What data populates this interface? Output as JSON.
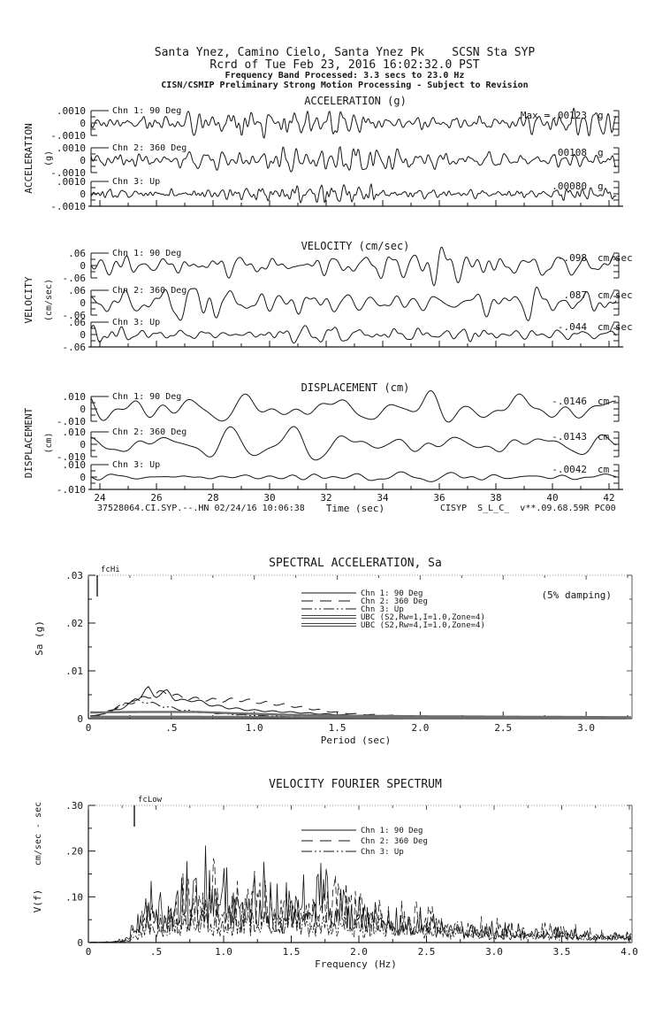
{
  "header": {
    "line1": "Santa Ynez, Camino Cielo, Santa Ynez Pk    SCSN Sta SYP",
    "line2": "Rcrd of Tue Feb 23, 2016 16:02:32.0 PST",
    "line3": "Frequency Band Processed: 3.3 secs to 23.0 Hz",
    "line4": "CISN/CSMIP Preliminary Strong Motion Processing - Subject to Revision"
  },
  "waveform_footer": {
    "left": "37528064.CI.SYP.--.HN 02/24/16 10:06:38",
    "right": "CISYP  S_L_C_  v**.09.68.59R PC00"
  },
  "chart_data": [
    {
      "id": "acceleration",
      "type": "line",
      "title": "ACCELERATION (g)",
      "axis_label": "ACCELERATION",
      "axis_unit": "(g)",
      "ytick_labels": [
        ".0010",
        "0",
        "-.0010"
      ],
      "y_fullscale": 0.001,
      "time_window_sec": [
        23.6,
        42.5
      ],
      "channels": [
        {
          "label": "Chn 1: 90 Deg",
          "max_prefix": "Max =",
          "max_value_label": "-.00123",
          "unit": "g",
          "max_value": -0.00123,
          "seed": 11,
          "freq_band": [
            1.2,
            6.5
          ]
        },
        {
          "label": "Chn 2: 360 Deg",
          "max_value_label": ".00108",
          "unit": "g",
          "max_value": 0.00108,
          "seed": 22,
          "freq_band": [
            1.2,
            6.5
          ]
        },
        {
          "label": "Chn 3: Up",
          "max_value_label": ".00080",
          "unit": "g",
          "max_value": 0.0008,
          "seed": 33,
          "freq_band": [
            1.6,
            7.5
          ]
        }
      ]
    },
    {
      "id": "velocity",
      "type": "line",
      "title": "VELOCITY (cm/sec)",
      "axis_label": "VELOCITY",
      "axis_unit": "(cm/sec)",
      "ytick_labels": [
        ".06",
        "0",
        "-.06"
      ],
      "y_fullscale": 0.06,
      "time_window_sec": [
        23.6,
        42.5
      ],
      "channels": [
        {
          "label": "Chn 1: 90 Deg",
          "max_value_label": "-.098",
          "unit": "cm/sec",
          "max_value": -0.098,
          "seed": 44,
          "freq_band": [
            0.7,
            3.0
          ]
        },
        {
          "label": "Chn 2: 360 Deg",
          "max_value_label": ".087",
          "unit": "cm/sec",
          "max_value": 0.087,
          "seed": 55,
          "freq_band": [
            0.7,
            3.0
          ]
        },
        {
          "label": "Chn 3: Up",
          "max_value_label": "-.044",
          "unit": "cm/sec",
          "max_value": -0.044,
          "seed": 66,
          "freq_band": [
            0.9,
            3.6
          ]
        }
      ]
    },
    {
      "id": "displacement",
      "type": "line",
      "title": "DISPLACEMENT (cm)",
      "axis_label": "DISPLACEMENT",
      "axis_unit": "(cm)",
      "ytick_labels": [
        ".010",
        "0",
        "-.010"
      ],
      "y_fullscale": 0.01,
      "time_window_sec": [
        23.6,
        42.5
      ],
      "xlabel": "Time (sec)",
      "xtick_labels": [
        "24",
        "26",
        "28",
        "30",
        "32",
        "34",
        "36",
        "38",
        "40",
        "42"
      ],
      "channels": [
        {
          "label": "Chn 1: 90 Deg",
          "max_value_label": "-.0146",
          "unit": "cm",
          "max_value": -0.0146,
          "seed": 77,
          "freq_band": [
            0.3,
            1.4
          ]
        },
        {
          "label": "Chn 2: 360 Deg",
          "max_value_label": "-.0143",
          "unit": "cm",
          "max_value": -0.0143,
          "seed": 88,
          "freq_band": [
            0.3,
            1.4
          ]
        },
        {
          "label": "Chn 3: Up",
          "max_value_label": "-.0042",
          "unit": "cm",
          "max_value": -0.0042,
          "seed": 99,
          "freq_band": [
            0.4,
            1.8
          ]
        }
      ]
    },
    {
      "id": "spectral_acceleration",
      "type": "line",
      "title": "SPECTRAL ACCELERATION, Sa",
      "corner_annotation": "fcHi",
      "damping_note": "(5% damping)",
      "ylabel": "Sa (g)",
      "ytick_labels": [
        ".03",
        ".02",
        ".01",
        "0"
      ],
      "xtick_labels": [
        "0",
        ".5",
        "1.0",
        "1.5",
        "2.0",
        "2.5",
        "3.0"
      ],
      "xlabel": "Period (sec)",
      "xlim": [
        0,
        3.3
      ],
      "ylim": [
        0,
        0.03
      ],
      "series": [
        {
          "label": "Chn 1: 90 Deg",
          "style": "solid",
          "points": [
            [
              0.04,
              0.0006
            ],
            [
              0.08,
              0.001
            ],
            [
              0.12,
              0.0013
            ],
            [
              0.16,
              0.0018
            ],
            [
              0.2,
              0.0022
            ],
            [
              0.24,
              0.0028
            ],
            [
              0.28,
              0.0038
            ],
            [
              0.32,
              0.005
            ],
            [
              0.36,
              0.0062
            ],
            [
              0.4,
              0.0048
            ],
            [
              0.44,
              0.0052
            ],
            [
              0.48,
              0.0056
            ],
            [
              0.52,
              0.0042
            ],
            [
              0.58,
              0.0036
            ],
            [
              0.64,
              0.004
            ],
            [
              0.7,
              0.0032
            ],
            [
              0.78,
              0.0026
            ],
            [
              0.86,
              0.0022
            ],
            [
              0.94,
              0.0019
            ],
            [
              1.02,
              0.0017
            ],
            [
              1.12,
              0.0015
            ],
            [
              1.25,
              0.0013
            ],
            [
              1.4,
              0.001
            ],
            [
              1.6,
              0.0007
            ],
            [
              1.8,
              0.0005
            ],
            [
              2.0,
              0.0004
            ],
            [
              2.4,
              0.0003
            ],
            [
              2.8,
              0.0002
            ],
            [
              3.28,
              0.0002
            ]
          ]
        },
        {
          "label": "Chn 2: 360 Deg",
          "style": "long-dash",
          "points": [
            [
              0.04,
              0.0005
            ],
            [
              0.1,
              0.0012
            ],
            [
              0.16,
              0.0022
            ],
            [
              0.22,
              0.003
            ],
            [
              0.28,
              0.0036
            ],
            [
              0.34,
              0.0044
            ],
            [
              0.4,
              0.005
            ],
            [
              0.46,
              0.0056
            ],
            [
              0.52,
              0.0048
            ],
            [
              0.6,
              0.0042
            ],
            [
              0.7,
              0.004
            ],
            [
              0.8,
              0.0038
            ],
            [
              0.9,
              0.004
            ],
            [
              1.0,
              0.0036
            ],
            [
              1.1,
              0.0032
            ],
            [
              1.2,
              0.0028
            ],
            [
              1.32,
              0.0022
            ],
            [
              1.45,
              0.0015
            ],
            [
              1.6,
              0.001
            ],
            [
              1.8,
              0.0007
            ],
            [
              2.0,
              0.0005
            ],
            [
              2.4,
              0.0003
            ],
            [
              2.8,
              0.0002
            ],
            [
              3.28,
              0.0002
            ]
          ]
        },
        {
          "label": "Chn 3: Up",
          "style": "dash-dot-dot",
          "points": [
            [
              0.04,
              0.0005
            ],
            [
              0.1,
              0.001
            ],
            [
              0.16,
              0.002
            ],
            [
              0.22,
              0.0032
            ],
            [
              0.28,
              0.0038
            ],
            [
              0.34,
              0.0036
            ],
            [
              0.4,
              0.003
            ],
            [
              0.48,
              0.0024
            ],
            [
              0.56,
              0.0018
            ],
            [
              0.66,
              0.0014
            ],
            [
              0.78,
              0.0011
            ],
            [
              0.9,
              0.0008
            ],
            [
              1.05,
              0.0006
            ],
            [
              1.25,
              0.0004
            ],
            [
              1.5,
              0.0003
            ],
            [
              2.0,
              0.0002
            ],
            [
              2.6,
              0.0001
            ],
            [
              3.28,
              0.0001
            ]
          ]
        },
        {
          "label": "UBC (S2,Rw=1,I=1.0,Zone=4)",
          "style": "double-solid",
          "points": [
            [
              0.04,
              0.0013
            ],
            [
              0.3,
              0.0014
            ],
            [
              0.66,
              0.0014
            ],
            [
              0.9,
              0.0011
            ],
            [
              1.2,
              0.0008
            ],
            [
              1.6,
              0.0006
            ],
            [
              2.0,
              0.0005
            ],
            [
              2.6,
              0.0004
            ],
            [
              3.28,
              0.0003
            ]
          ]
        },
        {
          "label": "UBC (S2,Rw=4,I=1.0,Zone=4)",
          "style": "double-solid",
          "points": [
            [
              0.04,
              0.0004
            ],
            [
              0.66,
              0.0004
            ],
            [
              1.2,
              0.0003
            ],
            [
              2.0,
              0.0002
            ],
            [
              3.28,
              0.0002
            ]
          ]
        }
      ]
    },
    {
      "id": "velocity_fourier_spectrum",
      "type": "line",
      "title": "VELOCITY FOURIER SPECTRUM",
      "corner_annotation": "fcLow",
      "ylabel_unit": "cm/sec - sec",
      "ylabel": "V(f)",
      "ytick_labels": [
        ".30",
        ".20",
        ".10",
        "0"
      ],
      "xtick_labels": [
        "0",
        ".5",
        "1.0",
        "1.5",
        "2.0",
        "2.5",
        "3.0",
        "3.5",
        "4.0"
      ],
      "xlabel": "Frequency (Hz)",
      "xlim": [
        0,
        4.0
      ],
      "ylim": [
        0,
        0.3
      ],
      "series": [
        {
          "label": "Chn 1: 90 Deg",
          "style": "solid",
          "seed": 41,
          "envelope": [
            [
              0.05,
              0.001
            ],
            [
              0.2,
              0.004
            ],
            [
              0.3,
              0.02
            ],
            [
              0.4,
              0.1
            ],
            [
              0.45,
              0.17
            ],
            [
              0.55,
              0.1
            ],
            [
              0.7,
              0.14
            ],
            [
              0.85,
              0.22
            ],
            [
              0.95,
              0.15
            ],
            [
              1.05,
              0.18
            ],
            [
              1.15,
              0.13
            ],
            [
              1.3,
              0.16
            ],
            [
              1.45,
              0.12
            ],
            [
              1.6,
              0.15
            ],
            [
              1.7,
              0.18
            ],
            [
              1.85,
              0.12
            ],
            [
              2.0,
              0.1
            ],
            [
              2.2,
              0.08
            ],
            [
              2.4,
              0.07
            ],
            [
              2.6,
              0.06
            ],
            [
              2.8,
              0.05
            ],
            [
              3.0,
              0.04
            ],
            [
              3.2,
              0.035
            ],
            [
              3.5,
              0.03
            ],
            [
              3.8,
              0.02
            ],
            [
              4.05,
              0.02
            ]
          ]
        },
        {
          "label": "Chn 2: 360 Deg",
          "style": "long-dash",
          "seed": 52,
          "envelope": [
            [
              0.05,
              0.001
            ],
            [
              0.2,
              0.004
            ],
            [
              0.3,
              0.015
            ],
            [
              0.4,
              0.08
            ],
            [
              0.5,
              0.12
            ],
            [
              0.6,
              0.1
            ],
            [
              0.75,
              0.16
            ],
            [
              0.9,
              0.2
            ],
            [
              1.0,
              0.14
            ],
            [
              1.1,
              0.17
            ],
            [
              1.25,
              0.13
            ],
            [
              1.4,
              0.15
            ],
            [
              1.55,
              0.11
            ],
            [
              1.7,
              0.14
            ],
            [
              1.9,
              0.16
            ],
            [
              2.1,
              0.09
            ],
            [
              2.3,
              0.08
            ],
            [
              2.5,
              0.09
            ],
            [
              2.7,
              0.06
            ],
            [
              2.9,
              0.05
            ],
            [
              3.1,
              0.05
            ],
            [
              3.3,
              0.04
            ],
            [
              3.5,
              0.05
            ],
            [
              3.7,
              0.03
            ],
            [
              4.05,
              0.025
            ]
          ]
        },
        {
          "label": "Chn 3: Up",
          "style": "dash-dot-dot",
          "seed": 63,
          "envelope": [
            [
              0.05,
              0.0005
            ],
            [
              0.2,
              0.002
            ],
            [
              0.3,
              0.008
            ],
            [
              0.4,
              0.04
            ],
            [
              0.5,
              0.06
            ],
            [
              0.65,
              0.08
            ],
            [
              0.8,
              0.1
            ],
            [
              0.95,
              0.08
            ],
            [
              1.1,
              0.09
            ],
            [
              1.3,
              0.07
            ],
            [
              1.5,
              0.08
            ],
            [
              1.7,
              0.07
            ],
            [
              1.9,
              0.06
            ],
            [
              2.1,
              0.06
            ],
            [
              2.3,
              0.05
            ],
            [
              2.5,
              0.05
            ],
            [
              2.8,
              0.04
            ],
            [
              3.0,
              0.035
            ],
            [
              3.3,
              0.03
            ],
            [
              3.6,
              0.025
            ],
            [
              4.05,
              0.02
            ]
          ]
        }
      ]
    }
  ],
  "colors": {
    "ink": "#161616",
    "gray_curve": "#6e6e6e",
    "dotted_border": "#999999"
  }
}
